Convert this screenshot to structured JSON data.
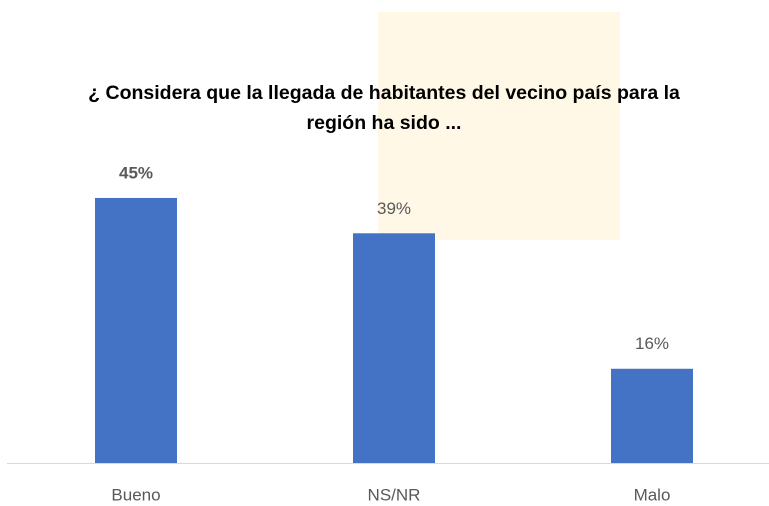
{
  "chart_data": {
    "type": "bar",
    "title": "¿ Considera que la llegada de habitantes del vecino país para la región ha sido ...",
    "categories": [
      "Bueno",
      "NS/NR",
      "Malo"
    ],
    "values": [
      45,
      39,
      16
    ],
    "value_labels": [
      "45%",
      "39%",
      "16%"
    ],
    "color": "#4472c4"
  }
}
